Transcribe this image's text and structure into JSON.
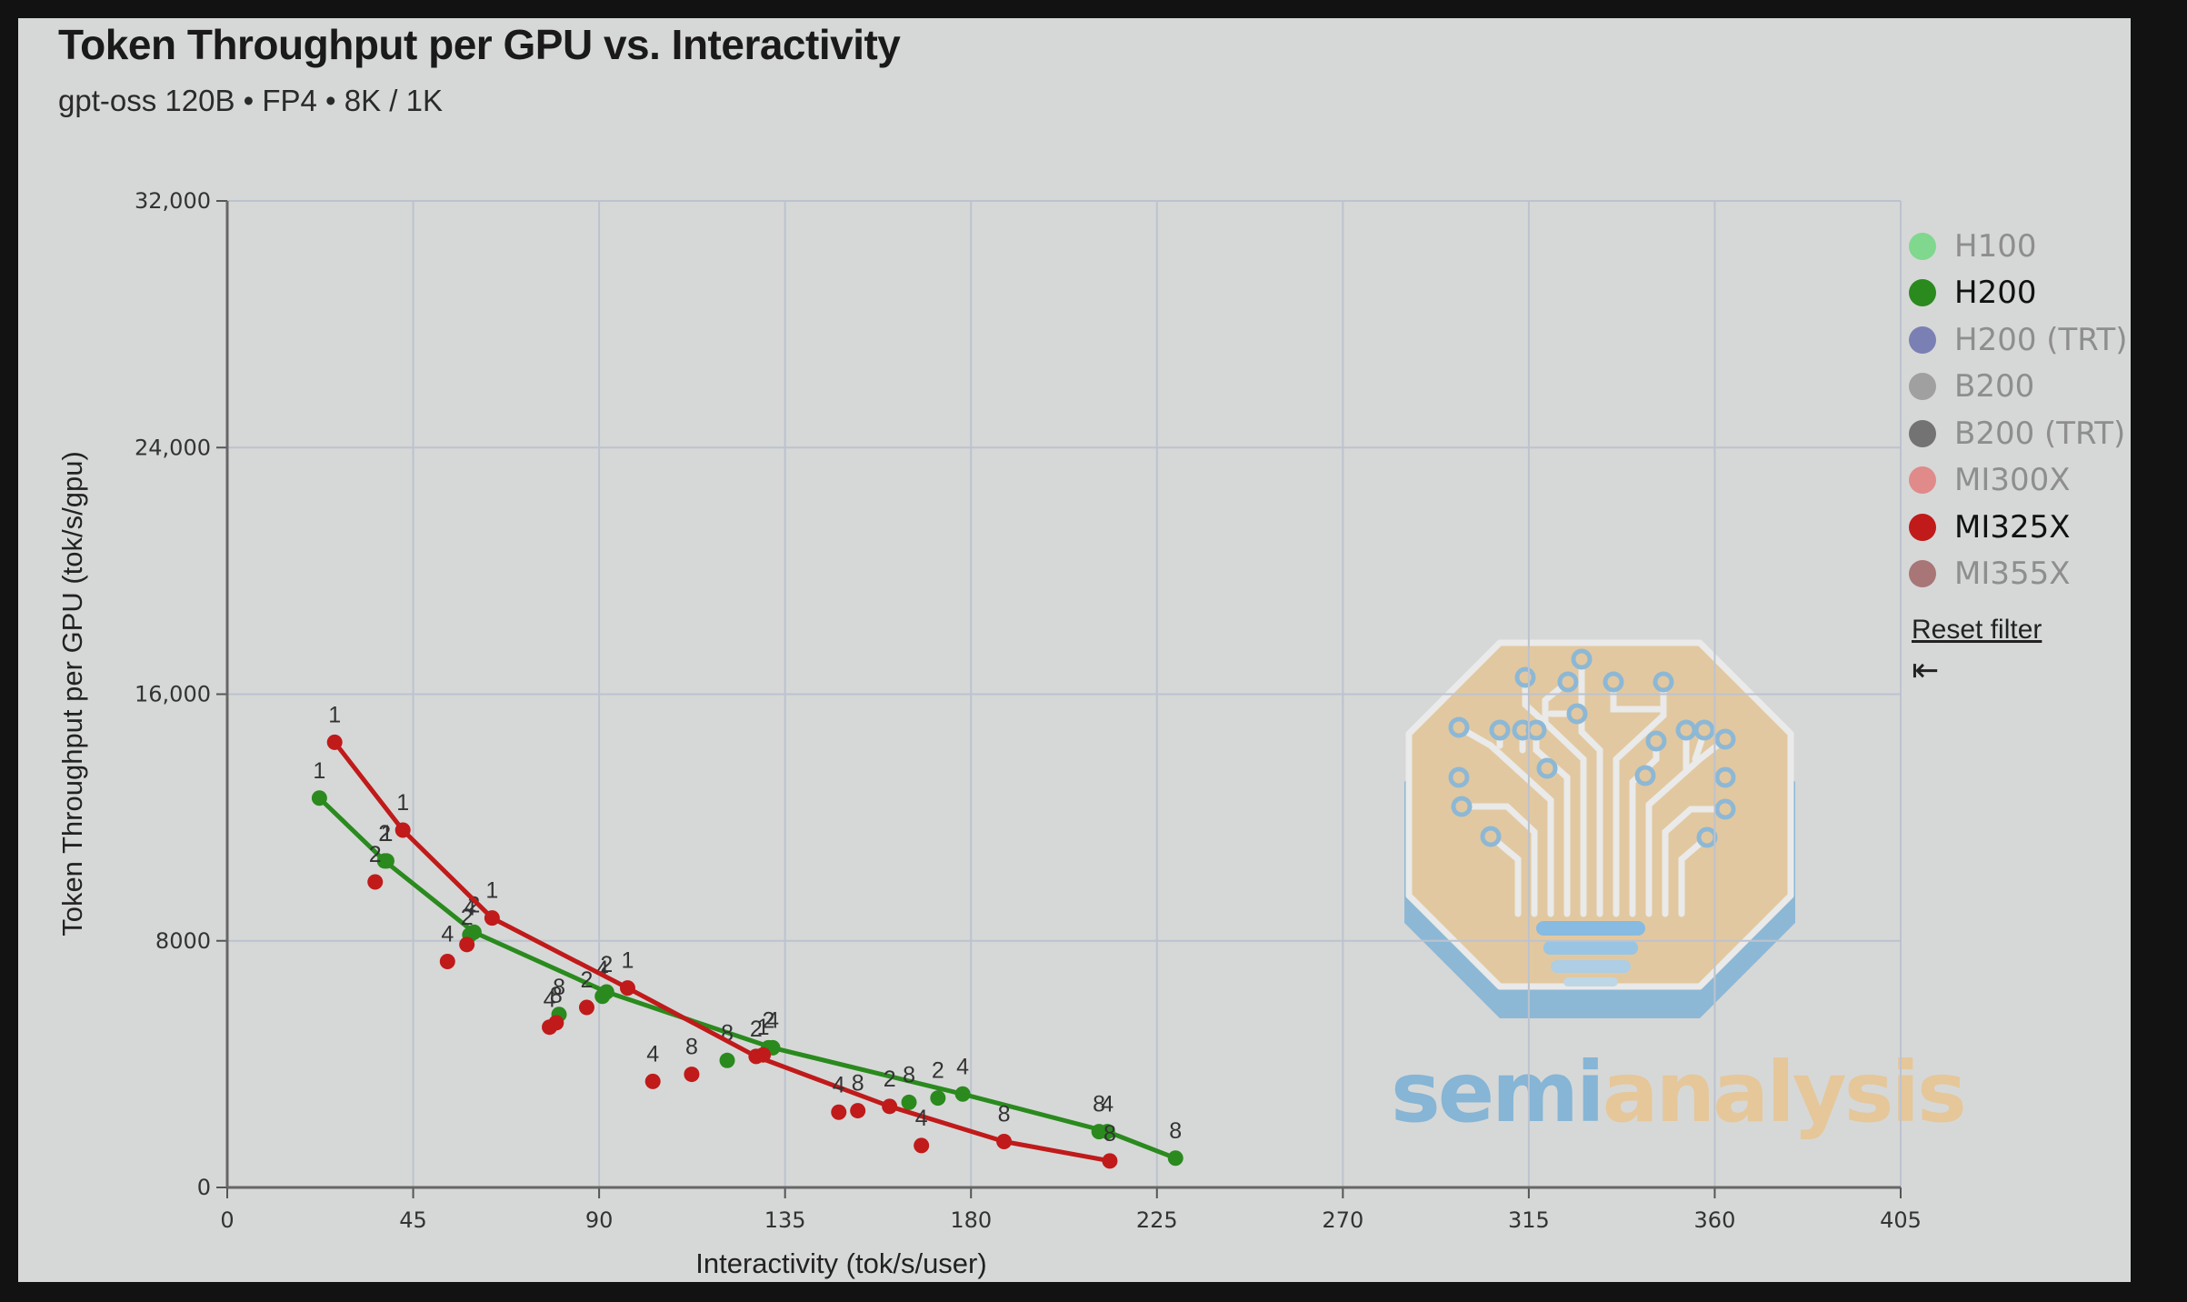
{
  "header": {
    "title": "Token Throughput per GPU vs. Interactivity",
    "subtitle": "gpt-oss 120B • FP4 • 8K / 1K"
  },
  "legend": {
    "items": [
      {
        "label": "H100",
        "color": "#7fd88d",
        "active": false
      },
      {
        "label": "H200",
        "color": "#2a8a1e",
        "active": true
      },
      {
        "label": "H200 (TRT)",
        "color": "#7a80b4",
        "active": false
      },
      {
        "label": "B200",
        "color": "#a0a0a0",
        "active": false
      },
      {
        "label": "B200 (TRT)",
        "color": "#737373",
        "active": false
      },
      {
        "label": "MI300X",
        "color": "#e08a8a",
        "active": false
      },
      {
        "label": "MI325X",
        "color": "#c01a1a",
        "active": true
      },
      {
        "label": "MI355X",
        "color": "#a87676",
        "active": false
      }
    ],
    "reset_label": "Reset filter",
    "collapse_icon": "⇤"
  },
  "logo": {
    "text_a": "semi",
    "text_b": "analysis"
  },
  "chart_data": {
    "type": "scatter",
    "title": "Token Throughput per GPU vs. Interactivity",
    "subtitle": "gpt-oss 120B • FP4 • 8K / 1K",
    "xlabel": "Interactivity (tok/s/user)",
    "ylabel": "Token Throughput per GPU (tok/s/gpu)",
    "xlim": [
      0,
      405
    ],
    "ylim": [
      0,
      32000
    ],
    "xticks": [
      0,
      45,
      90,
      135,
      180,
      225,
      270,
      315,
      360,
      405
    ],
    "yticks": [
      0,
      8000,
      16000,
      24000,
      32000
    ],
    "ytick_labels": [
      "0",
      "8000",
      "16,000",
      "24,000",
      "32,000"
    ],
    "grid": true,
    "legend_position": "right",
    "point_labels_note": "numeric label above each point = tensor parallel size",
    "series": [
      {
        "name": "H200",
        "color": "#2a8a1e",
        "points": [
          {
            "x": 22.3,
            "y": 12630,
            "label": "1",
            "frontier": true
          },
          {
            "x": 38.1,
            "y": 10590,
            "label": "2",
            "frontier": true
          },
          {
            "x": 38.6,
            "y": 10590,
            "label": "1",
            "frontier": false
          },
          {
            "x": 58.7,
            "y": 8190,
            "label": "4",
            "frontier": false
          },
          {
            "x": 59.7,
            "y": 8280,
            "label": "2",
            "frontier": true
          },
          {
            "x": 80.3,
            "y": 5610,
            "label": "8",
            "frontier": false
          },
          {
            "x": 90.8,
            "y": 6200,
            "label": "4",
            "frontier": false
          },
          {
            "x": 91.8,
            "y": 6340,
            "label": "2",
            "frontier": true
          },
          {
            "x": 121.0,
            "y": 4120,
            "label": "8",
            "frontier": false
          },
          {
            "x": 131.0,
            "y": 4530,
            "label": "2",
            "frontier": false
          },
          {
            "x": 132.0,
            "y": 4530,
            "label": "4",
            "frontier": true
          },
          {
            "x": 165.0,
            "y": 2760,
            "label": "8",
            "frontier": false
          },
          {
            "x": 172.0,
            "y": 2900,
            "label": "2",
            "frontier": false
          },
          {
            "x": 178.0,
            "y": 3030,
            "label": "4",
            "frontier": true
          },
          {
            "x": 211.0,
            "y": 1810,
            "label": "8",
            "frontier": false
          },
          {
            "x": 213.0,
            "y": 1810,
            "label": "4",
            "frontier": true
          },
          {
            "x": 229.5,
            "y": 950,
            "label": "8",
            "frontier": true
          }
        ]
      },
      {
        "name": "MI325X",
        "color": "#c01a1a",
        "points": [
          {
            "x": 26.0,
            "y": 14440,
            "label": "1",
            "frontier": true
          },
          {
            "x": 35.8,
            "y": 9910,
            "label": "2",
            "frontier": false
          },
          {
            "x": 42.5,
            "y": 11590,
            "label": "1",
            "frontier": true
          },
          {
            "x": 53.3,
            "y": 7330,
            "label": "4",
            "frontier": false
          },
          {
            "x": 58.0,
            "y": 7880,
            "label": "2",
            "frontier": false
          },
          {
            "x": 64.1,
            "y": 8740,
            "label": "1",
            "frontier": true
          },
          {
            "x": 78.0,
            "y": 5200,
            "label": "4",
            "frontier": false
          },
          {
            "x": 79.6,
            "y": 5340,
            "label": "8",
            "frontier": false
          },
          {
            "x": 87.0,
            "y": 5840,
            "label": "2",
            "frontier": false
          },
          {
            "x": 96.9,
            "y": 6470,
            "label": "1",
            "frontier": true
          },
          {
            "x": 103.0,
            "y": 3440,
            "label": "4",
            "frontier": false
          },
          {
            "x": 112.4,
            "y": 3670,
            "label": "8",
            "frontier": false
          },
          {
            "x": 128.0,
            "y": 4250,
            "label": "2",
            "frontier": true
          },
          {
            "x": 129.7,
            "y": 4300,
            "label": "1",
            "frontier": false
          },
          {
            "x": 148.0,
            "y": 2440,
            "label": "4",
            "frontier": false
          },
          {
            "x": 152.6,
            "y": 2490,
            "label": "8",
            "frontier": false
          },
          {
            "x": 160.3,
            "y": 2630,
            "label": "2",
            "frontier": true
          },
          {
            "x": 168.0,
            "y": 1360,
            "label": "4",
            "frontier": false
          },
          {
            "x": 188.0,
            "y": 1490,
            "label": "8",
            "frontier": true
          },
          {
            "x": 213.6,
            "y": 860,
            "label": "8",
            "frontier": true
          }
        ]
      }
    ]
  }
}
